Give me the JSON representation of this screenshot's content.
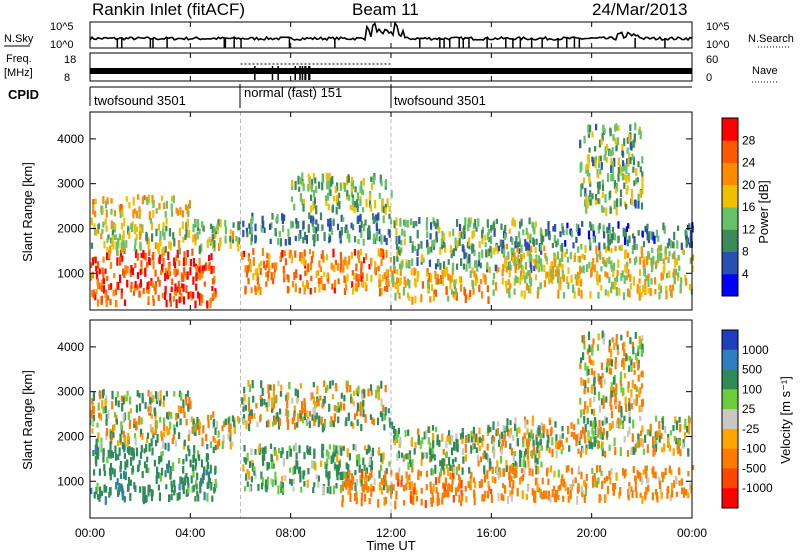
{
  "header": {
    "station": "Rankin Inlet (fitACF)",
    "beam": "Beam 11",
    "date": "24/Mar/2013"
  },
  "colors": {
    "power": [
      "#0000ff",
      "#2a4fb0",
      "#3c8a5a",
      "#66c266",
      "#f0c000",
      "#ff8c00",
      "#ff5a00",
      "#ff0000"
    ],
    "velocity": [
      "#1f3fbf",
      "#2e7fbf",
      "#2e8b57",
      "#6acd3c",
      "#c8c8c0",
      "#ffa500",
      "#ff7a00",
      "#ff4500",
      "#ff0000"
    ]
  },
  "chart_data": [
    {
      "type": "line",
      "panel": "noise-sky-search",
      "left_label": "N.Sky",
      "right_label": "N.Search",
      "left_ticks": [
        "10^5",
        "10^0"
      ],
      "right_ticks": [
        "10^5",
        "10^0"
      ],
      "x": [
        "00:00",
        "04:00",
        "08:00",
        "12:00",
        "16:00",
        "20:00",
        "00:00"
      ],
      "notes": "Noise sky level near baseline with intermittent spikes, strongest around 12:00"
    },
    {
      "type": "line",
      "panel": "frequency-nave",
      "left_label_top": "Freq.",
      "left_label_bottom": "[MHz]",
      "right_label": "Nave",
      "left_ticks": [
        "18",
        "8"
      ],
      "right_ticks": [
        "60",
        "0"
      ],
      "x": [
        "00:00",
        "04:00",
        "08:00",
        "12:00",
        "16:00",
        "20:00",
        "00:00"
      ]
    },
    {
      "type": "table",
      "panel": "cpid",
      "label": "CPID",
      "segments": [
        {
          "name": "twofsound 3501",
          "start": 0,
          "end": 6
        },
        {
          "name": "normal (fast) 151",
          "start": 6,
          "end": 12
        },
        {
          "name": "twofsound 3501",
          "start": 12,
          "end": 24
        }
      ]
    },
    {
      "type": "heatmap",
      "panel": "power",
      "ylabel": "Slant Range [km]",
      "yticks": [
        1000,
        2000,
        3000,
        4000
      ],
      "ylim": [
        180,
        4600
      ],
      "xlim": [
        0,
        24
      ],
      "xticks": [
        "00:00",
        "04:00",
        "08:00",
        "12:00",
        "16:00",
        "20:00",
        "00:00"
      ],
      "colorbar_label": "Power [dB]",
      "colorbar_ticks": [
        "28",
        "24",
        "20",
        "16",
        "12",
        "8",
        "4"
      ],
      "colorbar_range": [
        0,
        32
      ],
      "bands": [
        {
          "t": [
            0,
            5
          ],
          "r": [
            300,
            1500
          ],
          "level": 26
        },
        {
          "t": [
            0,
            6
          ],
          "r": [
            1500,
            2200
          ],
          "level": 15
        },
        {
          "t": [
            0,
            4
          ],
          "r": [
            2300,
            2700
          ],
          "level": 19
        },
        {
          "t": [
            6,
            12
          ],
          "r": [
            600,
            1500
          ],
          "level": 23
        },
        {
          "t": [
            6,
            12
          ],
          "r": [
            1700,
            2300
          ],
          "level": 10
        },
        {
          "t": [
            8,
            12
          ],
          "r": [
            2400,
            3200
          ],
          "level": 14
        },
        {
          "t": [
            12,
            16
          ],
          "r": [
            400,
            1100
          ],
          "level": 20
        },
        {
          "t": [
            12,
            18
          ],
          "r": [
            1100,
            2200
          ],
          "level": 12
        },
        {
          "t": [
            16,
            24
          ],
          "r": [
            500,
            1600
          ],
          "level": 18
        },
        {
          "t": [
            18,
            24
          ],
          "r": [
            1600,
            2100
          ],
          "level": 9
        },
        {
          "t": [
            19.5,
            22
          ],
          "r": [
            2400,
            4300
          ],
          "level": 13
        }
      ]
    },
    {
      "type": "heatmap",
      "panel": "velocity",
      "ylabel": "Slant Range [km]",
      "yticks": [
        1000,
        2000,
        3000,
        4000
      ],
      "ylim": [
        180,
        4600
      ],
      "xlim": [
        0,
        24
      ],
      "xticks": [
        "00:00",
        "04:00",
        "08:00",
        "12:00",
        "16:00",
        "20:00",
        "00:00"
      ],
      "xlabel": "Time UT",
      "colorbar_label": "Velocity [m s⁻¹]",
      "colorbar_ticks": [
        "1000",
        "500",
        "100",
        "25",
        "-25",
        "-100",
        "-500",
        "-1000"
      ],
      "bands": [
        {
          "t": [
            0,
            5
          ],
          "r": [
            600,
            1800
          ],
          "v": 300
        },
        {
          "t": [
            0,
            6
          ],
          "r": [
            1800,
            2500
          ],
          "v": 0
        },
        {
          "t": [
            0,
            4
          ],
          "r": [
            2500,
            3000
          ],
          "v": 50
        },
        {
          "t": [
            6,
            12
          ],
          "r": [
            800,
            1800
          ],
          "v": 150
        },
        {
          "t": [
            6,
            12
          ],
          "r": [
            2200,
            3200
          ],
          "v": 0
        },
        {
          "t": [
            10,
            16
          ],
          "r": [
            500,
            1200
          ],
          "v": -300
        },
        {
          "t": [
            12,
            18
          ],
          "r": [
            1200,
            2200
          ],
          "v": 80
        },
        {
          "t": [
            16,
            24
          ],
          "r": [
            600,
            1300
          ],
          "v": -200
        },
        {
          "t": [
            16,
            24
          ],
          "r": [
            1600,
            2400
          ],
          "v": 0
        },
        {
          "t": [
            19.5,
            22
          ],
          "r": [
            2500,
            4300
          ],
          "v": -60
        }
      ]
    }
  ]
}
